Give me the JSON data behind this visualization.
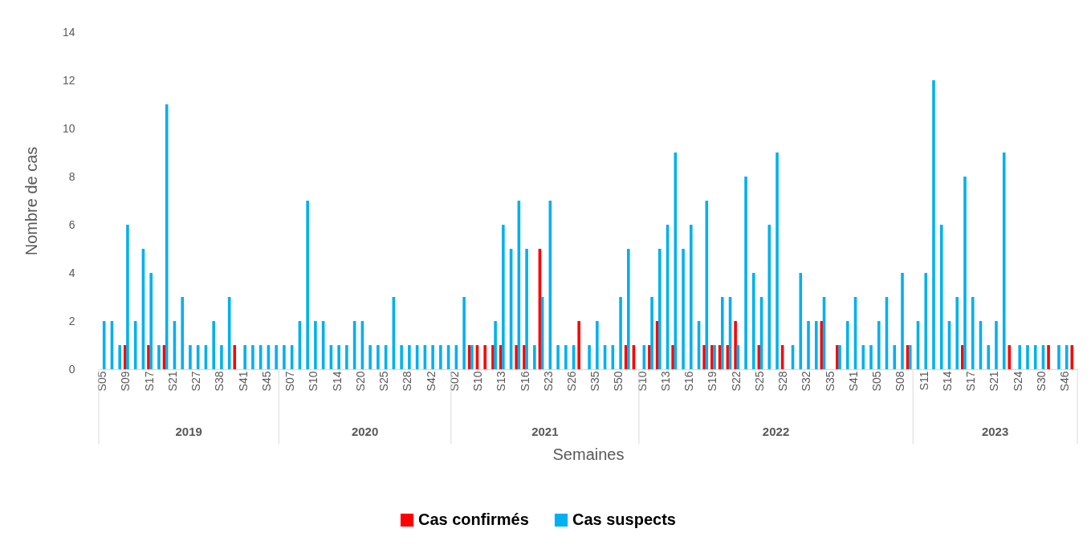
{
  "chart_data": {
    "type": "bar",
    "xlabel": "Semaines",
    "ylabel": "Nombre de cas",
    "categories": [
      "S05",
      null,
      null,
      "S09",
      null,
      null,
      "S17",
      null,
      null,
      "S21",
      null,
      null,
      "S27",
      null,
      null,
      "S38",
      null,
      null,
      "S41",
      null,
      null,
      "S45",
      null,
      null,
      "S07",
      null,
      null,
      "S10",
      null,
      null,
      "S14",
      null,
      null,
      "S20",
      null,
      null,
      "S25",
      null,
      null,
      "S28",
      null,
      null,
      "S42",
      null,
      null,
      "S02",
      null,
      null,
      "S10",
      null,
      null,
      "S13",
      null,
      null,
      "S16",
      null,
      null,
      "S23",
      null,
      null,
      "S26",
      null,
      null,
      "S35",
      null,
      null,
      "S50",
      null,
      null,
      "S10",
      null,
      null,
      "S13",
      null,
      null,
      "S16",
      null,
      null,
      "S19",
      null,
      null,
      "S22",
      null,
      null,
      "S25",
      null,
      null,
      "S28",
      null,
      null,
      "S32",
      null,
      null,
      "S35",
      null,
      null,
      "S41",
      null,
      null,
      "S05",
      null,
      null,
      "S08",
      null,
      null,
      "S11",
      null,
      null,
      "S14",
      null,
      null,
      "S17",
      null,
      null,
      "S21",
      null,
      null,
      "S24",
      null,
      null,
      "S30",
      null,
      null,
      "S46",
      null
    ],
    "series": [
      {
        "name": "Cas confirmés",
        "color": "#ff0000",
        "values": [
          0,
          0,
          0,
          1,
          0,
          0,
          1,
          0,
          1,
          0,
          0,
          0,
          0,
          0,
          0,
          0,
          0,
          1,
          0,
          0,
          0,
          0,
          0,
          0,
          0,
          0,
          0,
          0,
          0,
          0,
          0,
          0,
          0,
          0,
          0,
          0,
          0,
          0,
          0,
          0,
          0,
          0,
          0,
          0,
          0,
          0,
          0,
          1,
          1,
          1,
          1,
          1,
          0,
          1,
          1,
          0,
          5,
          0,
          0,
          0,
          0,
          2,
          0,
          0,
          0,
          0,
          0,
          1,
          1,
          0,
          1,
          2,
          0,
          1,
          0,
          0,
          0,
          1,
          1,
          1,
          1,
          2,
          0,
          0,
          1,
          0,
          0,
          1,
          0,
          0,
          0,
          0,
          2,
          0,
          1,
          0,
          0,
          0,
          0,
          0,
          0,
          0,
          0,
          1,
          0,
          0,
          0,
          0,
          0,
          0,
          1,
          0,
          0,
          0,
          0,
          0,
          1,
          0,
          0,
          0,
          0,
          1,
          0,
          0,
          1
        ]
      },
      {
        "name": "Cas suspects",
        "color": "#00b0f0",
        "values": [
          2,
          2,
          1,
          6,
          2,
          5,
          4,
          1,
          11,
          2,
          3,
          1,
          1,
          1,
          2,
          1,
          3,
          0,
          1,
          1,
          1,
          1,
          1,
          1,
          1,
          2,
          7,
          2,
          2,
          1,
          1,
          1,
          2,
          2,
          1,
          1,
          1,
          3,
          1,
          1,
          1,
          1,
          1,
          1,
          1,
          1,
          3,
          1,
          0,
          0,
          2,
          6,
          5,
          7,
          5,
          1,
          3,
          7,
          1,
          1,
          1,
          0,
          1,
          2,
          1,
          1,
          3,
          5,
          0,
          1,
          3,
          5,
          6,
          9,
          5,
          6,
          2,
          7,
          1,
          3,
          3,
          1,
          8,
          4,
          3,
          6,
          9,
          0,
          1,
          4,
          2,
          2,
          3,
          0,
          1,
          2,
          3,
          1,
          1,
          2,
          3,
          1,
          4,
          1,
          2,
          4,
          12,
          6,
          2,
          3,
          8,
          3,
          2,
          1,
          2,
          9,
          0,
          1,
          1,
          1,
          1,
          0,
          1,
          1,
          0
        ]
      }
    ],
    "ylim": [
      0,
      14
    ],
    "yticks": [
      0,
      2,
      4,
      6,
      8,
      10,
      12,
      14
    ],
    "legend": "bottom",
    "annotations": [
      "2019",
      "2020",
      "2021",
      "2022",
      "2023"
    ]
  }
}
